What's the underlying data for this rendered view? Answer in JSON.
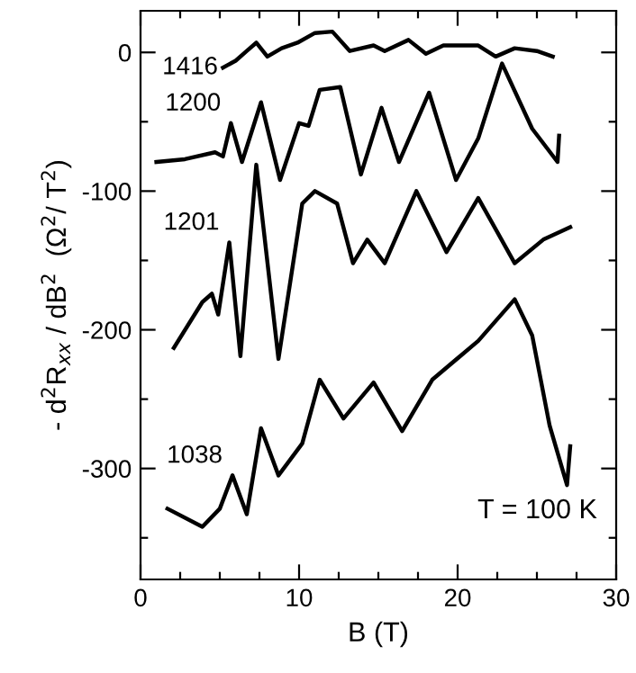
{
  "chart_data": {
    "type": "line",
    "xlabel": "B (T)",
    "ylabel": "- d$^{2}$R$_{xx}$ / dB$^{2}$  (Ω$^{2}$/ T$^{2}$)",
    "xlim": [
      0,
      30
    ],
    "ylim": [
      -380,
      30
    ],
    "xticks": [
      0,
      {
        "value": 2.5,
        "label": null
      },
      {
        "value": 5,
        "label": null
      },
      {
        "value": 7.5,
        "label": null
      },
      10,
      {
        "value": 12.5,
        "label": null
      },
      {
        "value": 15,
        "label": null
      },
      {
        "value": 17.5,
        "label": null
      },
      20,
      {
        "value": 22.5,
        "label": null
      },
      {
        "value": 25,
        "label": null
      },
      {
        "value": 27.5,
        "label": null
      },
      30
    ],
    "yticks": [
      {
        "value": -350,
        "label": null
      },
      -300,
      {
        "value": -250,
        "label": null
      },
      -200,
      {
        "value": -150,
        "label": null
      },
      -100,
      {
        "value": -50,
        "label": null
      },
      0
    ],
    "grid": false,
    "legend": false,
    "marker": "none",
    "line_style": "solid",
    "series": [
      {
        "name": "1416",
        "color": "#000000",
        "x": [
          5.2,
          6.0,
          6.7,
          7.3,
          8.0,
          8.9,
          9.9,
          11.0,
          12.1,
          13.2,
          14.7,
          15.4,
          16.9,
          18.0,
          19.1,
          20.2,
          21.3,
          22.4,
          23.6,
          25.0,
          26.0
        ],
        "values": [
          -11,
          -6,
          1,
          7,
          -3,
          3,
          7,
          14,
          15,
          1,
          5,
          1,
          9,
          -1,
          5,
          5,
          5,
          -3,
          3,
          1,
          -3
        ]
      },
      {
        "name": "1200",
        "color": "#000000",
        "x": [
          1.0,
          2.8,
          4.7,
          5.2,
          5.7,
          6.4,
          7.6,
          8.8,
          10.0,
          10.6,
          11.3,
          12.6,
          13.9,
          15.2,
          16.3,
          18.2,
          19.9,
          21.3,
          22.8,
          24.7,
          26.3,
          26.4
        ],
        "values": [
          -79,
          -77,
          -72,
          -75,
          -51,
          -79,
          -36,
          -92,
          -51,
          -53,
          -27,
          -25,
          -88,
          -40,
          -79,
          -29,
          -92,
          -62,
          -8,
          -55,
          -79,
          -60
        ]
      },
      {
        "name": "1201",
        "color": "#000000",
        "x": [
          2.1,
          3.9,
          4.5,
          4.9,
          5.6,
          6.3,
          7.3,
          8.7,
          10.2,
          11.0,
          12.4,
          13.4,
          14.3,
          15.4,
          17.4,
          19.3,
          21.3,
          23.6,
          25.4,
          27.1
        ],
        "values": [
          -213,
          -180,
          -174,
          -189,
          -137,
          -219,
          -81,
          -221,
          -109,
          -100,
          -109,
          -152,
          -135,
          -152,
          -100,
          -144,
          -105,
          -152,
          -135,
          -126
        ]
      },
      {
        "name": "1038",
        "color": "#000000",
        "x": [
          1.7,
          3.9,
          5.0,
          5.8,
          6.7,
          7.6,
          8.7,
          10.2,
          11.3,
          12.8,
          14.7,
          16.5,
          18.4,
          21.3,
          23.6,
          24.7,
          25.8,
          26.9,
          27.1
        ],
        "values": [
          -329,
          -342,
          -329,
          -305,
          -333,
          -271,
          -305,
          -282,
          -236,
          -264,
          -238,
          -273,
          -236,
          -208,
          -178,
          -204,
          -269,
          -312,
          -284
        ]
      }
    ],
    "annotations": [
      "T = 100 K"
    ]
  }
}
